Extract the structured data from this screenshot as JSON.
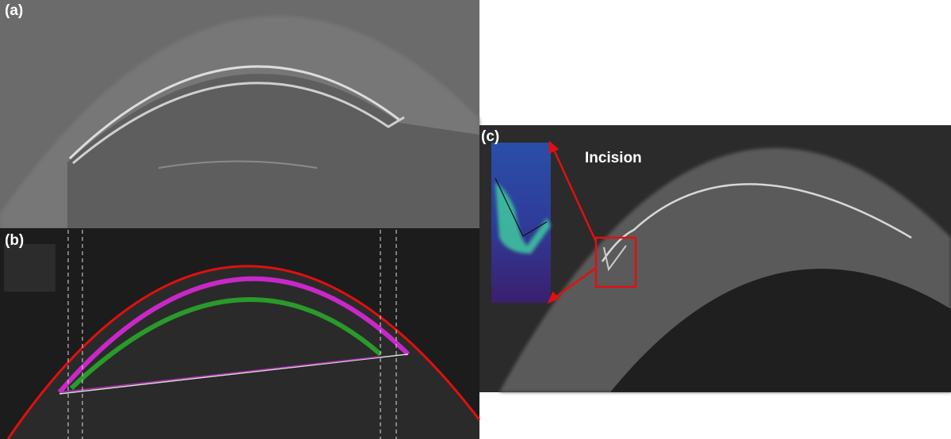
{
  "panels": [
    {
      "label": "(a)"
    },
    {
      "label": "(b)"
    },
    {
      "label": "(c)",
      "annotation": "Incision"
    }
  ]
}
